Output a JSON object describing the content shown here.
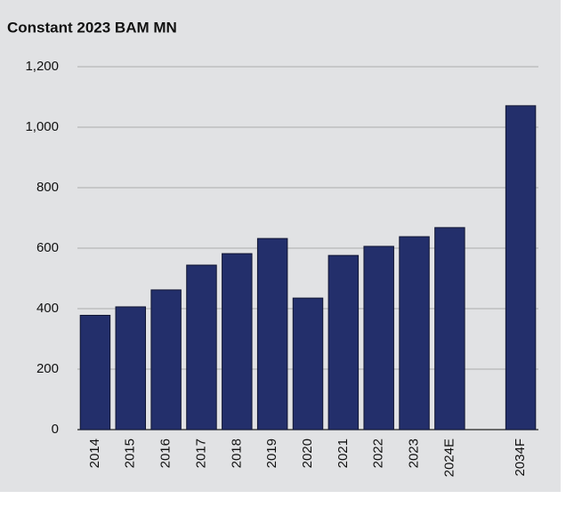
{
  "chart_data": {
    "type": "bar",
    "title": "Constant 2023 BAM MN",
    "categories": [
      "2014",
      "2015",
      "2016",
      "2017",
      "2018",
      "2019",
      "2020",
      "2021",
      "2022",
      "2023",
      "2024E",
      null,
      "2034F"
    ],
    "values": [
      378,
      406,
      462,
      544,
      582,
      632,
      435,
      576,
      606,
      638,
      668,
      null,
      1071
    ],
    "color": "#232f6b",
    "ylim": [
      0,
      1200
    ],
    "yticks": [
      0,
      200,
      400,
      600,
      800,
      {
        "value": 1000,
        "label": "1,000"
      },
      {
        "value": 1200,
        "label": "1,200"
      }
    ],
    "grid": true
  }
}
